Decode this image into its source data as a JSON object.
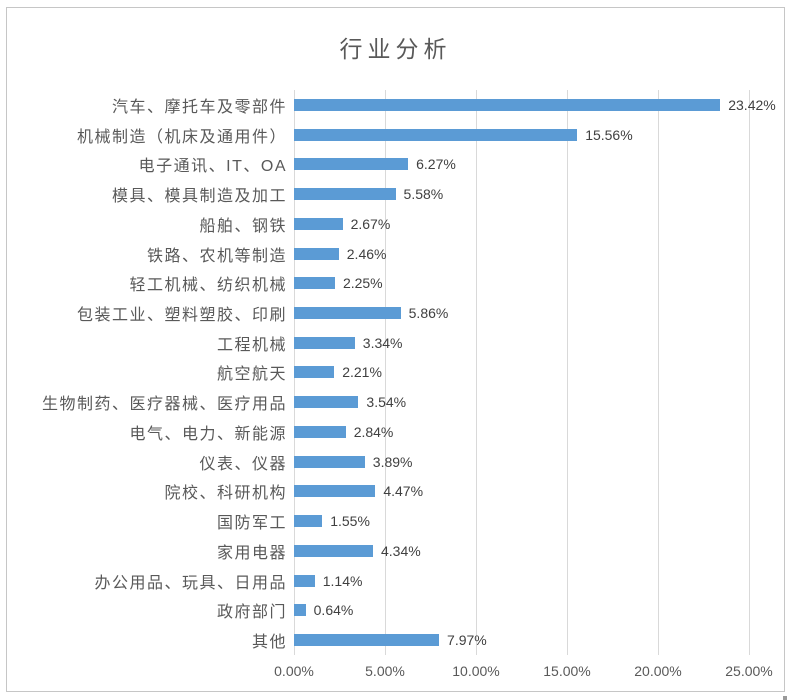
{
  "chart": {
    "frame_border_color": "#c6c6c6",
    "bar_color": "#5b9bd5",
    "gridline_color": "#d9d9d9",
    "title_color": "#595959",
    "axis_label_color": "#595959",
    "data_label_color": "#404040"
  },
  "chart_data": {
    "type": "bar",
    "orientation": "horizontal",
    "title": "行业分析",
    "categories": [
      "汽车、摩托车及零部件",
      "机械制造（机床及通用件）",
      "电子通讯、IT、OA",
      "模具、模具制造及加工",
      "船舶、钢铁",
      "铁路、农机等制造",
      "轻工机械、纺织机械",
      "包装工业、塑料塑胶、印刷",
      "工程机械",
      "航空航天",
      "生物制药、医疗器械、医疗用品",
      "电气、电力、新能源",
      "仪表、仪器",
      "院校、科研机构",
      "国防军工",
      "家用电器",
      "办公用品、玩具、日用品",
      "政府部门",
      "其他"
    ],
    "values": [
      23.42,
      15.56,
      6.27,
      5.58,
      2.67,
      2.46,
      2.25,
      5.86,
      3.34,
      2.21,
      3.54,
      2.84,
      3.89,
      4.47,
      1.55,
      4.34,
      1.14,
      0.64,
      7.97
    ],
    "data_labels": [
      "23.42%",
      "15.56%",
      "6.27%",
      "5.58%",
      "2.67%",
      "2.46%",
      "2.25%",
      "5.86%",
      "3.34%",
      "2.21%",
      "3.54%",
      "2.84%",
      "3.89%",
      "4.47%",
      "1.55%",
      "4.34%",
      "1.14%",
      "0.64%",
      "7.97%"
    ],
    "xlabel": "",
    "ylabel": "",
    "xlim": [
      0,
      25
    ],
    "xticks": [
      "0.00%",
      "5.00%",
      "10.00%",
      "15.00%",
      "20.00%",
      "25.00%"
    ],
    "grid": true,
    "legend": "none"
  }
}
